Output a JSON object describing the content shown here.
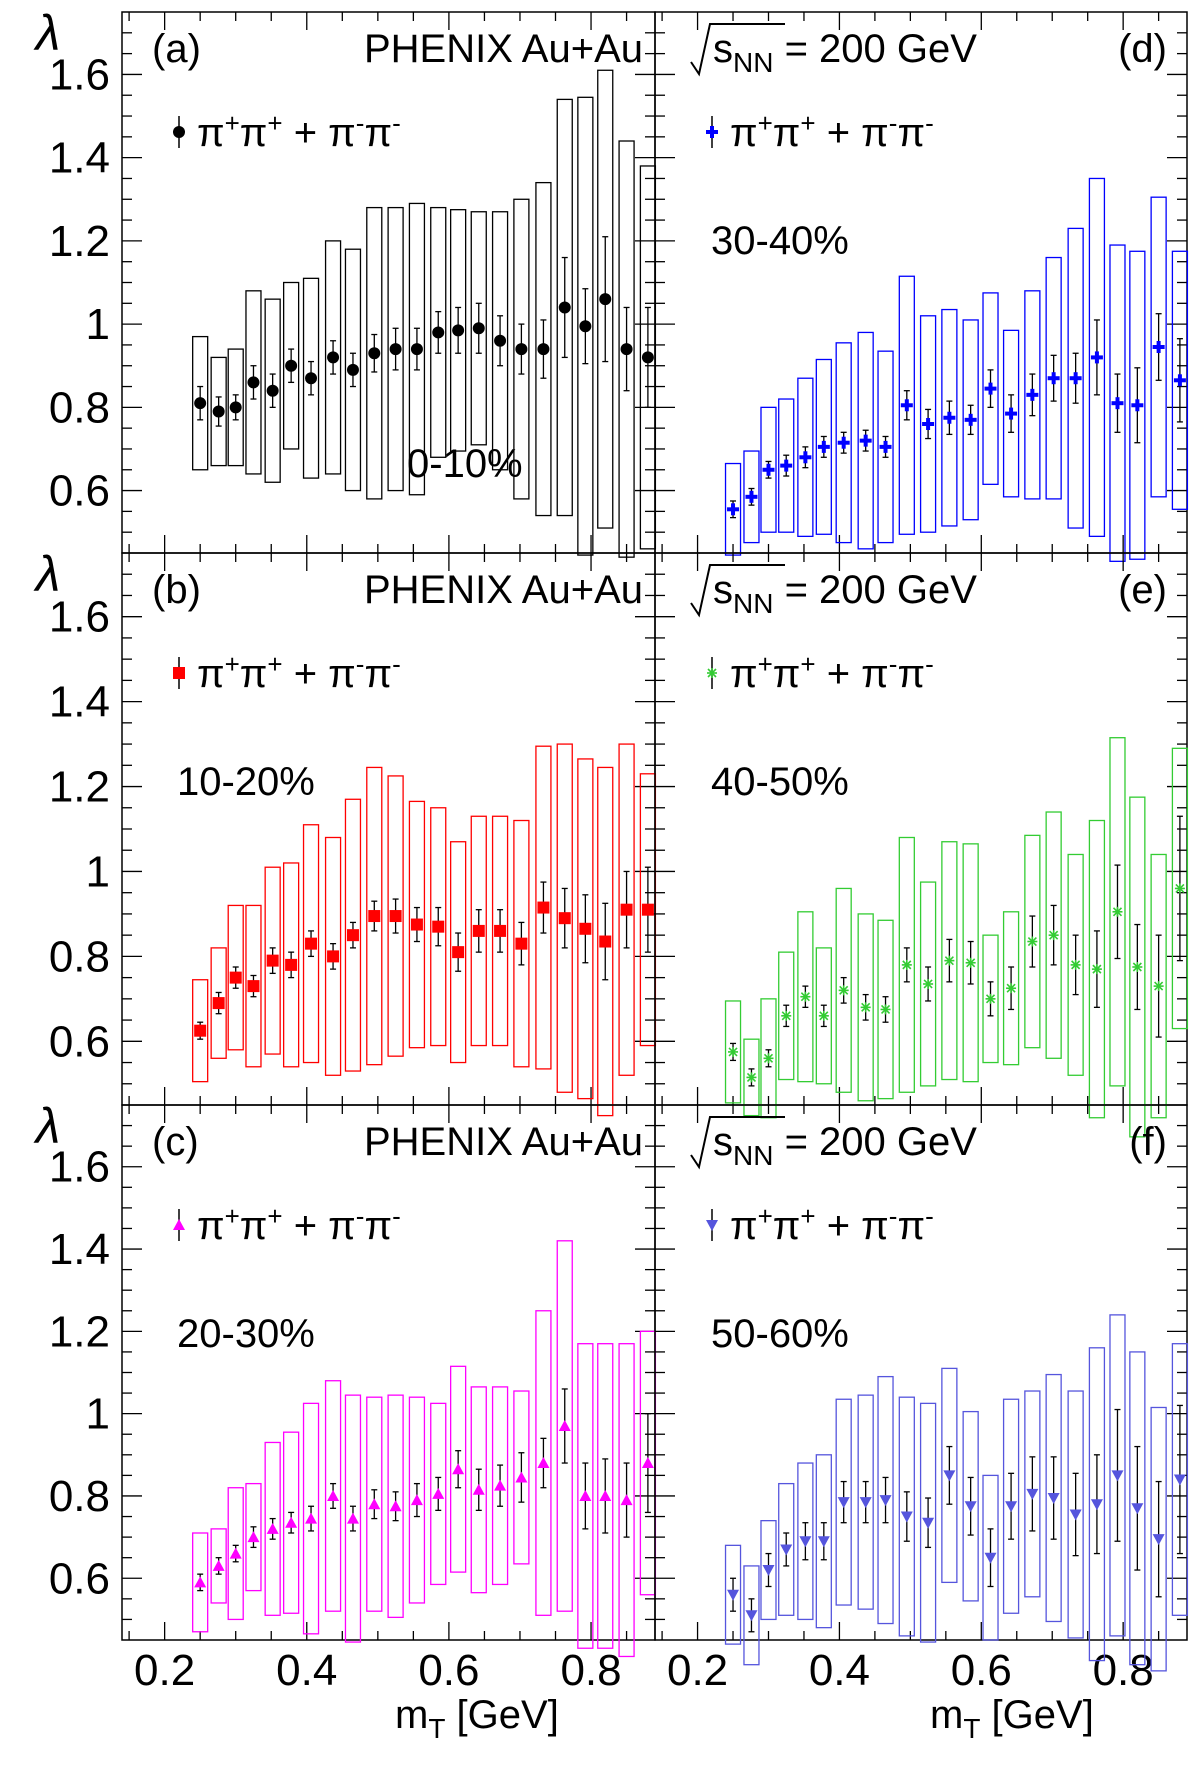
{
  "figure": {
    "x_axis_label": "m",
    "x_axis_label_sub": "T",
    "x_axis_label_unit": " [GeV]",
    "y_axis_label": "λ",
    "x_tick_labels": [
      "0.2",
      "0.4",
      "0.6",
      "0.8"
    ],
    "y_tick_labels": [
      "0.6",
      "0.8",
      "1",
      "1.2",
      "1.4",
      "1.6"
    ]
  },
  "chart_data": [
    {
      "type": "scatter",
      "panel_label": "(a)",
      "header_text": "PHENIX Au+Au",
      "legend": {
        "main": "π",
        "sup1": "+",
        "mid": "π",
        "sup2": "+",
        "tail": " + π",
        "sup3": "-",
        "tail2": "π",
        "sup4": "-"
      },
      "centrality": "0-10%",
      "color": "#000000",
      "marker": "circle",
      "xlim": [
        0.14,
        0.89
      ],
      "ylim": [
        0.45,
        1.75
      ],
      "x": [
        0.25,
        0.276,
        0.3,
        0.325,
        0.352,
        0.378,
        0.406,
        0.437,
        0.465,
        0.495,
        0.525,
        0.555,
        0.585,
        0.613,
        0.642,
        0.672,
        0.702,
        0.733,
        0.763,
        0.792,
        0.82,
        0.85,
        0.88
      ],
      "y": [
        0.81,
        0.79,
        0.8,
        0.86,
        0.84,
        0.9,
        0.87,
        0.92,
        0.89,
        0.93,
        0.94,
        0.94,
        0.98,
        0.985,
        0.99,
        0.96,
        0.94,
        0.94,
        1.04,
        0.995,
        1.06,
        0.94,
        0.92
      ],
      "stat_err": [
        0.04,
        0.035,
        0.03,
        0.04,
        0.04,
        0.04,
        0.04,
        0.04,
        0.04,
        0.045,
        0.05,
        0.05,
        0.05,
        0.055,
        0.06,
        0.06,
        0.06,
        0.07,
        0.12,
        0.09,
        0.15,
        0.1,
        0.12
      ],
      "sys_err": [
        0.16,
        0.13,
        0.14,
        0.22,
        0.22,
        0.2,
        0.24,
        0.28,
        0.29,
        0.35,
        0.34,
        0.35,
        0.3,
        0.29,
        0.28,
        0.31,
        0.36,
        0.4,
        0.5,
        0.55,
        0.55,
        0.5,
        0.46
      ]
    },
    {
      "type": "scatter",
      "panel_label": "(b)",
      "header_text": "PHENIX Au+Au",
      "legend": {
        "main": "π",
        "sup1": "+",
        "mid": "π",
        "sup2": "+",
        "tail": " + π",
        "sup3": "-",
        "tail2": "π",
        "sup4": "-"
      },
      "centrality": "10-20%",
      "color": "#ff0000",
      "marker": "square",
      "xlim": [
        0.14,
        0.89
      ],
      "ylim": [
        0.45,
        1.75
      ],
      "x": [
        0.25,
        0.276,
        0.3,
        0.325,
        0.352,
        0.378,
        0.406,
        0.437,
        0.465,
        0.495,
        0.525,
        0.555,
        0.585,
        0.613,
        0.642,
        0.672,
        0.702,
        0.733,
        0.763,
        0.792,
        0.82,
        0.85,
        0.88
      ],
      "y": [
        0.625,
        0.69,
        0.75,
        0.73,
        0.79,
        0.78,
        0.83,
        0.8,
        0.85,
        0.895,
        0.895,
        0.875,
        0.87,
        0.81,
        0.86,
        0.86,
        0.83,
        0.915,
        0.89,
        0.865,
        0.835,
        0.91,
        0.91
      ],
      "stat_err": [
        0.02,
        0.025,
        0.025,
        0.025,
        0.03,
        0.03,
        0.03,
        0.03,
        0.03,
        0.035,
        0.04,
        0.04,
        0.045,
        0.045,
        0.05,
        0.05,
        0.05,
        0.06,
        0.07,
        0.08,
        0.09,
        0.09,
        0.1
      ],
      "sys_err": [
        0.12,
        0.13,
        0.17,
        0.19,
        0.22,
        0.24,
        0.28,
        0.28,
        0.32,
        0.35,
        0.33,
        0.29,
        0.28,
        0.26,
        0.27,
        0.27,
        0.29,
        0.38,
        0.41,
        0.4,
        0.41,
        0.39,
        0.32
      ]
    },
    {
      "type": "scatter",
      "panel_label": "(c)",
      "header_text": "PHENIX Au+Au",
      "legend": {
        "main": "π",
        "sup1": "+",
        "mid": "π",
        "sup2": "+",
        "tail": " + π",
        "sup3": "-",
        "tail2": "π",
        "sup4": "-"
      },
      "centrality": "20-30%",
      "color": "#ff00ff",
      "marker": "triangle-up",
      "xlim": [
        0.14,
        0.89
      ],
      "ylim": [
        0.45,
        1.75
      ],
      "x": [
        0.25,
        0.276,
        0.3,
        0.325,
        0.352,
        0.378,
        0.406,
        0.437,
        0.465,
        0.495,
        0.525,
        0.555,
        0.585,
        0.613,
        0.642,
        0.672,
        0.702,
        0.733,
        0.763,
        0.792,
        0.82,
        0.85,
        0.88
      ],
      "y": [
        0.59,
        0.63,
        0.66,
        0.7,
        0.72,
        0.735,
        0.745,
        0.8,
        0.745,
        0.78,
        0.775,
        0.79,
        0.805,
        0.865,
        0.815,
        0.825,
        0.845,
        0.88,
        0.97,
        0.8,
        0.8,
        0.79,
        0.88
      ],
      "stat_err": [
        0.02,
        0.02,
        0.02,
        0.025,
        0.025,
        0.025,
        0.03,
        0.03,
        0.03,
        0.035,
        0.035,
        0.04,
        0.04,
        0.045,
        0.05,
        0.05,
        0.06,
        0.06,
        0.09,
        0.08,
        0.09,
        0.09,
        0.12
      ],
      "sys_err": [
        0.12,
        0.09,
        0.16,
        0.13,
        0.21,
        0.22,
        0.28,
        0.28,
        0.3,
        0.26,
        0.27,
        0.25,
        0.22,
        0.25,
        0.25,
        0.24,
        0.21,
        0.37,
        0.45,
        0.37,
        0.37,
        0.38,
        0.32
      ]
    },
    {
      "type": "scatter",
      "panel_label": "(d)",
      "header_text": "= 200 GeV",
      "header_sqrt": "s",
      "header_sqrt_sub": "NN",
      "legend": {
        "main": "π",
        "sup1": "+",
        "mid": "π",
        "sup2": "+",
        "tail": " + π",
        "sup3": "-",
        "tail2": "π",
        "sup4": "-"
      },
      "centrality": "30-40%",
      "color": "#0000ff",
      "marker": "cross",
      "xlim": [
        0.14,
        0.89
      ],
      "ylim": [
        0.45,
        1.75
      ],
      "x": [
        0.25,
        0.276,
        0.3,
        0.325,
        0.352,
        0.378,
        0.406,
        0.437,
        0.465,
        0.495,
        0.525,
        0.555,
        0.585,
        0.613,
        0.642,
        0.672,
        0.702,
        0.733,
        0.763,
        0.792,
        0.82,
        0.85,
        0.88
      ],
      "y": [
        0.555,
        0.585,
        0.65,
        0.66,
        0.68,
        0.705,
        0.715,
        0.72,
        0.705,
        0.805,
        0.76,
        0.775,
        0.77,
        0.845,
        0.785,
        0.83,
        0.87,
        0.87,
        0.92,
        0.81,
        0.805,
        0.945,
        0.865
      ],
      "stat_err": [
        0.02,
        0.02,
        0.02,
        0.025,
        0.025,
        0.025,
        0.025,
        0.025,
        0.025,
        0.035,
        0.035,
        0.04,
        0.035,
        0.045,
        0.045,
        0.05,
        0.055,
        0.06,
        0.09,
        0.07,
        0.09,
        0.08,
        0.1
      ],
      "sys_err": [
        0.11,
        0.11,
        0.15,
        0.16,
        0.19,
        0.21,
        0.24,
        0.26,
        0.23,
        0.31,
        0.26,
        0.26,
        0.24,
        0.23,
        0.2,
        0.25,
        0.29,
        0.36,
        0.43,
        0.38,
        0.37,
        0.36,
        0.31
      ]
    },
    {
      "type": "scatter",
      "panel_label": "(e)",
      "header_text": "= 200 GeV",
      "header_sqrt": "s",
      "header_sqrt_sub": "NN",
      "legend": {
        "main": "π",
        "sup1": "+",
        "mid": "π",
        "sup2": "+",
        "tail": " + π",
        "sup3": "-",
        "tail2": "π",
        "sup4": "-"
      },
      "centrality": "40-50%",
      "color": "#33cc33",
      "marker": "star",
      "xlim": [
        0.14,
        0.89
      ],
      "ylim": [
        0.45,
        1.75
      ],
      "x": [
        0.25,
        0.276,
        0.3,
        0.325,
        0.352,
        0.378,
        0.406,
        0.437,
        0.465,
        0.495,
        0.525,
        0.555,
        0.585,
        0.613,
        0.642,
        0.672,
        0.702,
        0.733,
        0.763,
        0.792,
        0.82,
        0.85,
        0.88
      ],
      "y": [
        0.575,
        0.515,
        0.56,
        0.66,
        0.705,
        0.66,
        0.72,
        0.68,
        0.675,
        0.78,
        0.735,
        0.79,
        0.785,
        0.7,
        0.725,
        0.835,
        0.85,
        0.78,
        0.77,
        0.905,
        0.775,
        0.73,
        0.96
      ],
      "stat_err": [
        0.02,
        0.02,
        0.02,
        0.025,
        0.025,
        0.025,
        0.03,
        0.03,
        0.03,
        0.04,
        0.04,
        0.05,
        0.05,
        0.04,
        0.05,
        0.06,
        0.07,
        0.07,
        0.09,
        0.11,
        0.1,
        0.12,
        0.17
      ],
      "sys_err": [
        0.12,
        0.09,
        0.14,
        0.15,
        0.2,
        0.16,
        0.24,
        0.22,
        0.21,
        0.3,
        0.24,
        0.28,
        0.28,
        0.15,
        0.18,
        0.25,
        0.29,
        0.26,
        0.35,
        0.41,
        0.4,
        0.31,
        0.33
      ]
    },
    {
      "type": "scatter",
      "panel_label": "(f)",
      "header_text": "= 200 GeV",
      "header_sqrt": "s",
      "header_sqrt_sub": "NN",
      "legend": {
        "main": "π",
        "sup1": "+",
        "mid": "π",
        "sup2": "+",
        "tail": " + π",
        "sup3": "-",
        "tail2": "π",
        "sup4": "-"
      },
      "centrality": "50-60%",
      "color": "#5555dd",
      "marker": "triangle-down",
      "xlim": [
        0.14,
        0.89
      ],
      "ylim": [
        0.45,
        1.75
      ],
      "x": [
        0.25,
        0.276,
        0.3,
        0.325,
        0.352,
        0.378,
        0.406,
        0.437,
        0.465,
        0.495,
        0.525,
        0.555,
        0.585,
        0.613,
        0.642,
        0.672,
        0.702,
        0.733,
        0.763,
        0.792,
        0.82,
        0.85,
        0.88
      ],
      "y": [
        0.56,
        0.51,
        0.62,
        0.67,
        0.69,
        0.69,
        0.785,
        0.785,
        0.79,
        0.75,
        0.735,
        0.85,
        0.775,
        0.65,
        0.775,
        0.805,
        0.795,
        0.755,
        0.78,
        0.85,
        0.77,
        0.695,
        0.84
      ],
      "stat_err": [
        0.04,
        0.04,
        0.04,
        0.04,
        0.045,
        0.045,
        0.05,
        0.05,
        0.055,
        0.06,
        0.06,
        0.07,
        0.07,
        0.07,
        0.08,
        0.09,
        0.1,
        0.1,
        0.12,
        0.16,
        0.15,
        0.14,
        0.18
      ],
      "sys_err": [
        0.12,
        0.12,
        0.12,
        0.16,
        0.19,
        0.21,
        0.25,
        0.26,
        0.3,
        0.29,
        0.29,
        0.26,
        0.23,
        0.2,
        0.26,
        0.25,
        0.3,
        0.3,
        0.38,
        0.39,
        0.38,
        0.32,
        0.33
      ]
    }
  ]
}
